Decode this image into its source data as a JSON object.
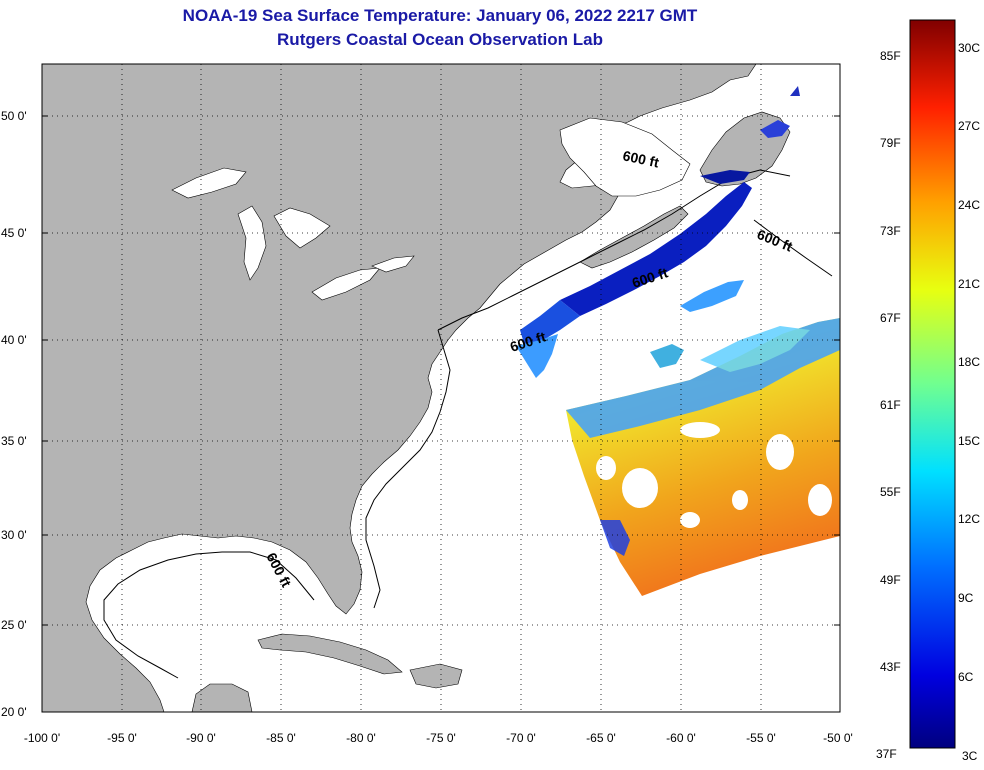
{
  "title": "NOAA-19 Sea Surface Temperature:  January 06, 2022 2217 GMT",
  "subtitle": "Rutgers Coastal Ocean Observation Lab",
  "lat_ticks": [
    "50 0'",
    "45 0'",
    "40 0'",
    "35 0'",
    "30 0'",
    "25 0'",
    "20 0'"
  ],
  "lon_ticks": [
    "-100 0'",
    "-95 0'",
    "-90 0'",
    "-85 0'",
    "-80 0'",
    "-75 0'",
    "-70 0'",
    "-65 0'",
    "-60 0'",
    "-55 0'",
    "-50 0'"
  ],
  "contour_labels": [
    "600 ft",
    "600 ft",
    "600 ft",
    "600 ft",
    "600 ft"
  ],
  "colorbar": {
    "f_labels": [
      "85F",
      "79F",
      "73F",
      "67F",
      "61F",
      "55F",
      "49F",
      "43F",
      "37F"
    ],
    "c_labels": [
      "30C",
      "27C",
      "24C",
      "21C",
      "18C",
      "15C",
      "12C",
      "9C",
      "6C",
      "3C"
    ]
  },
  "colors": {
    "title": "#1a1aa6",
    "land": "#b4b4b4",
    "ocean": "#ffffff",
    "colormap": [
      "#00008f",
      "#0000ff",
      "#0080ff",
      "#00ffff",
      "#80ff80",
      "#ffff00",
      "#ff8000",
      "#ff0000",
      "#800000"
    ]
  }
}
